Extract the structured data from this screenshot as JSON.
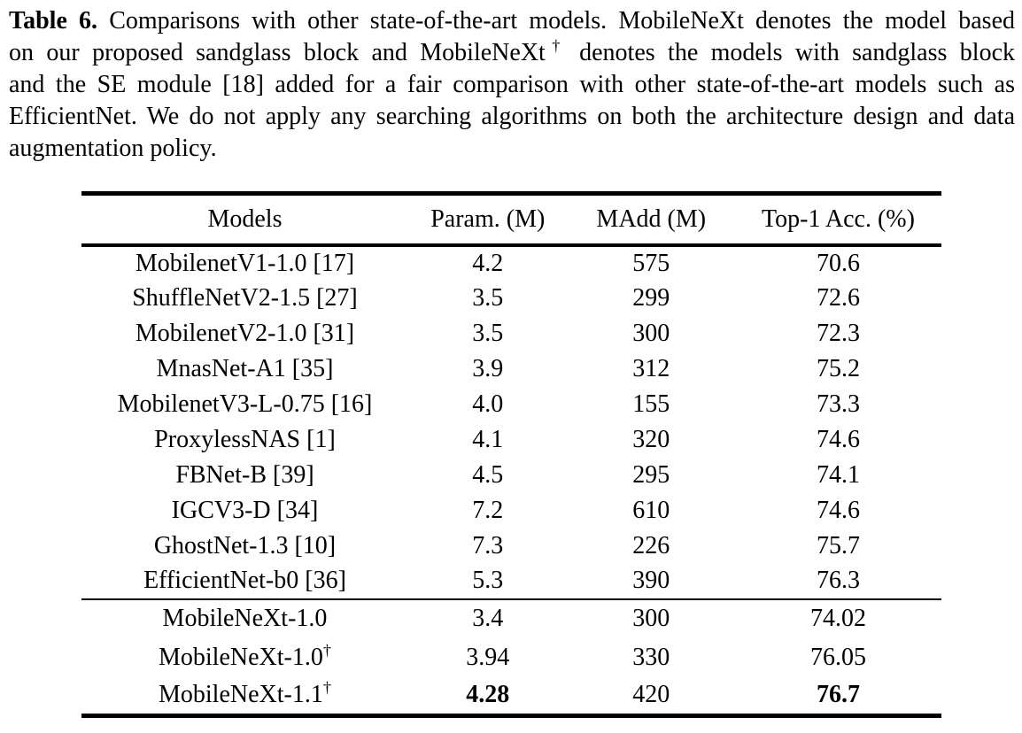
{
  "caption": {
    "label": "Table 6.",
    "lines": [
      "Comparisons with other state-of-the-art models. MobileNeXt denotes the model based",
      "on our proposed sandglass block and MobileNeXt† denotes the models with sandglass block",
      "and the SE module [18] added for a fair comparison with other state-of-the-art models such as",
      "EfficientNet. We do not apply any searching algorithms on both the architecture design and data",
      "augmentation policy."
    ]
  },
  "table": {
    "columns": [
      "Models",
      "Param. (M)",
      "MAdd (M)",
      "Top-1 Acc. (%)"
    ],
    "group1": [
      {
        "model": "MobilenetV1-1.0 [17]",
        "param": "4.2",
        "madd": "575",
        "top1": "70.6"
      },
      {
        "model": "ShuffleNetV2-1.5 [27]",
        "param": "3.5",
        "madd": "299",
        "top1": "72.6"
      },
      {
        "model": "MobilenetV2-1.0 [31]",
        "param": "3.5",
        "madd": "300",
        "top1": "72.3"
      },
      {
        "model": "MnasNet-A1 [35]",
        "param": "3.9",
        "madd": "312",
        "top1": "75.2"
      },
      {
        "model": "MobilenetV3-L-0.75 [16]",
        "param": "4.0",
        "madd": "155",
        "top1": "73.3"
      },
      {
        "model": "ProxylessNAS [1]",
        "param": "4.1",
        "madd": "320",
        "top1": "74.6"
      },
      {
        "model": "FBNet-B [39]",
        "param": "4.5",
        "madd": "295",
        "top1": "74.1"
      },
      {
        "model": "IGCV3-D [34]",
        "param": "7.2",
        "madd": "610",
        "top1": "74.6"
      },
      {
        "model": "GhostNet-1.3 [10]",
        "param": "7.3",
        "madd": "226",
        "top1": "75.7"
      },
      {
        "model": "EfficientNet-b0 [36]",
        "param": "5.3",
        "madd": "390",
        "top1": "76.3"
      }
    ],
    "group2": [
      {
        "model": "MobileNeXt-1.0",
        "param": "3.4",
        "madd": "300",
        "top1": "74.02"
      },
      {
        "model": "MobileNeXt-1.0†",
        "param": "3.94",
        "madd": "330",
        "top1": "76.05"
      },
      {
        "model": "MobileNeXt-1.1†",
        "param": "4.28",
        "madd": "420",
        "top1": "76.7"
      }
    ],
    "colors": {
      "text": "#000000",
      "background": "#ffffff",
      "rule": "#000000"
    }
  }
}
